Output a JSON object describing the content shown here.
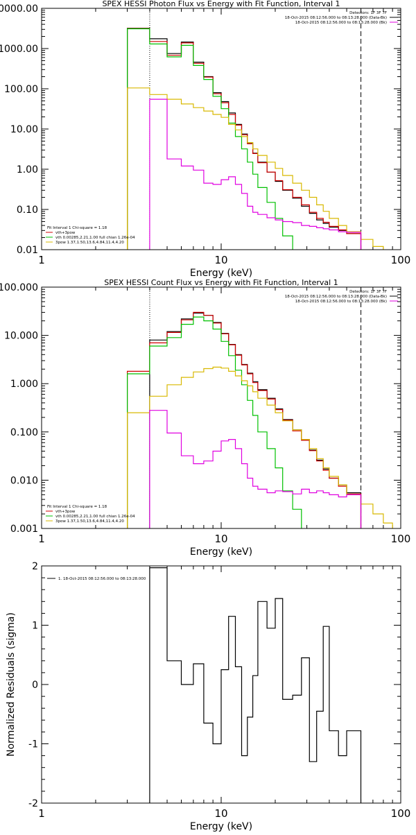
{
  "chart_data": [
    {
      "type": "line",
      "title": "SPEX HESSI Photon Flux vs Energy with Fit Function, Interval 1",
      "xlabel": "Energy (keV)",
      "ylabel": "",
      "x_scale": "log",
      "y_scale": "log",
      "xlim": [
        1,
        100
      ],
      "ylim": [
        0.01,
        10000
      ],
      "x_ticks": [
        "1",
        "10",
        "100"
      ],
      "y_ticks": [
        "0.01",
        "0.10",
        "1.00",
        "10.00",
        "100.00",
        "1000.00",
        "10000.00"
      ],
      "y_tick_values": [
        0.01,
        0.1,
        1,
        10,
        100,
        1000,
        10000
      ],
      "vlines": [
        {
          "x": 4,
          "style": "dotted"
        },
        {
          "x": 60,
          "style": "dashed"
        }
      ],
      "header_lines": [
        "Detectors: 1F 3F 7F",
        "18-Oct-2015 08:12:56.000 to 08:13:28.000 (Data-Bk)",
        "18-Oct-2015 08:12:56.000 to 08:13:28.000 (Bk)"
      ],
      "header_colors": [
        "#000000",
        "#000000",
        "#e000e0"
      ],
      "legend_lines": [
        "Fit Interval 1    Chi-square = 1.18",
        "vth+3pow",
        "vth 0.00285,2.21,1.00  full chian 1.26e-04",
        "3pow 1.37,1.50,13.6,4.84,11.4,4.20"
      ],
      "legend_colors": [
        "#000000",
        "#d00000",
        "#00c000",
        "#d8b800"
      ],
      "series": [
        {
          "name": "Data-Bk",
          "color": "#000000",
          "edges": [
            3,
            4,
            5,
            6,
            7,
            8,
            9,
            10,
            11,
            12,
            13,
            14,
            15,
            16,
            18,
            20,
            22,
            25,
            28,
            31,
            34,
            37,
            40,
            45,
            50,
            60
          ],
          "values": [
            3200,
            1750,
            750,
            1450,
            460,
            200,
            80,
            48,
            25,
            13,
            7.5,
            4.5,
            2.5,
            1.5,
            0.85,
            0.5,
            0.3,
            0.19,
            0.12,
            0.08,
            0.055,
            0.045,
            0.036,
            0.03,
            0.025
          ]
        },
        {
          "name": "vth+3pow",
          "color": "#d00000",
          "edges": [
            3,
            4,
            5,
            6,
            7,
            8,
            9,
            10,
            11,
            12,
            13,
            14,
            15,
            16,
            18,
            20,
            22,
            25,
            28,
            31,
            34,
            37,
            40,
            45,
            50,
            60
          ],
          "values": [
            3150,
            1500,
            680,
            1380,
            430,
            195,
            75,
            45,
            23,
            12.5,
            7.2,
            4.3,
            2.45,
            1.45,
            0.85,
            0.52,
            0.31,
            0.2,
            0.13,
            0.085,
            0.06,
            0.048,
            0.038,
            0.031,
            0.025
          ]
        },
        {
          "name": "vth",
          "color": "#00c000",
          "edges": [
            3,
            4,
            5,
            6,
            7,
            8,
            9,
            10,
            11,
            12,
            13,
            14,
            15,
            16,
            18,
            20,
            22,
            25
          ],
          "values": [
            3100,
            1300,
            620,
            1200,
            380,
            170,
            65,
            32,
            14,
            6.5,
            3.2,
            1.5,
            0.75,
            0.35,
            0.15,
            0.06,
            0.022
          ]
        },
        {
          "name": "3pow",
          "color": "#d8b800",
          "edges": [
            3,
            4,
            5,
            6,
            7,
            8,
            9,
            10,
            11,
            12,
            13,
            14,
            15,
            16,
            18,
            20,
            22,
            25,
            28,
            31,
            34,
            37,
            40,
            45,
            50,
            60,
            70,
            80
          ],
          "values": [
            105,
            72,
            55,
            42,
            34,
            28,
            23,
            19.5,
            13,
            9.5,
            6.5,
            4.6,
            3.2,
            2.2,
            1.5,
            1.05,
            0.7,
            0.45,
            0.3,
            0.2,
            0.13,
            0.09,
            0.06,
            0.04,
            0.028,
            0.018,
            0.012
          ]
        },
        {
          "name": "Bk",
          "color": "#e000e0",
          "edges": [
            4,
            5,
            6,
            7,
            8,
            9,
            10,
            11,
            12,
            13,
            14,
            15,
            16,
            18,
            20,
            22,
            25,
            28,
            31,
            34,
            37,
            40,
            45,
            50,
            60
          ],
          "values": [
            55,
            1.8,
            1.2,
            0.95,
            0.45,
            0.42,
            0.55,
            0.65,
            0.42,
            0.25,
            0.12,
            0.085,
            0.075,
            0.062,
            0.055,
            0.05,
            0.047,
            0.04,
            0.038,
            0.035,
            0.033,
            0.031,
            0.028,
            0.027
          ]
        }
      ]
    },
    {
      "type": "line",
      "title": "SPEX HESSI Count Flux vs Energy with Fit Function, Interval 1",
      "xlabel": "Energy (keV)",
      "ylabel": "",
      "x_scale": "log",
      "y_scale": "log",
      "xlim": [
        1,
        100
      ],
      "ylim": [
        0.001,
        100
      ],
      "x_ticks": [
        "1",
        "10",
        "100"
      ],
      "y_ticks": [
        "0.001",
        "0.010",
        "0.100",
        "1.000",
        "10.000",
        "100.000"
      ],
      "y_tick_values": [
        0.001,
        0.01,
        0.1,
        1,
        10,
        100
      ],
      "vlines": [
        {
          "x": 4,
          "style": "dotted"
        },
        {
          "x": 60,
          "style": "dashed"
        }
      ],
      "header_lines": [
        "Detectors: 1F 3F 7F",
        "18-Oct-2015 08:12:56.000 to 08:13:28.000 (Data-Bk)",
        "18-Oct-2015 08:12:56.000 to 08:13:28.000 (Bk)"
      ],
      "header_colors": [
        "#000000",
        "#000000",
        "#e000e0"
      ],
      "legend_lines": [
        "Fit Interval 1    Chi-square = 1.18",
        "vth+3pow",
        "vth 0.00285,2.21,1.00  full chian 1.26e-04",
        "3pow 1.37,1.50,13.6,4.84,11.4,4.20"
      ],
      "legend_colors": [
        "#000000",
        "#d00000",
        "#00c000",
        "#d8b800"
      ],
      "series": [
        {
          "name": "Data-Bk",
          "color": "#000000",
          "edges": [
            4,
            5,
            6,
            7,
            8,
            9,
            10,
            11,
            12,
            13,
            14,
            15,
            16,
            18,
            20,
            22,
            25,
            28,
            31,
            34,
            37,
            40,
            45,
            50,
            60
          ],
          "values": [
            8.0,
            12.0,
            22.0,
            29.0,
            26.0,
            18.5,
            11.0,
            6.5,
            4.0,
            2.5,
            1.65,
            1.1,
            0.75,
            0.5,
            0.3,
            0.18,
            0.11,
            0.07,
            0.042,
            0.026,
            0.017,
            0.011,
            0.008,
            0.0055
          ]
        },
        {
          "name": "vth+3pow",
          "color": "#d00000",
          "edges": [
            3,
            4,
            5,
            6,
            7,
            8,
            9,
            10,
            11,
            12,
            13,
            14,
            15,
            16,
            18,
            20,
            22,
            25,
            28,
            31,
            34,
            37,
            40,
            45,
            50,
            60
          ],
          "values": [
            1.8,
            7.0,
            11.5,
            21.0,
            30.0,
            26.0,
            18.0,
            10.8,
            6.4,
            3.9,
            2.45,
            1.6,
            1.05,
            0.72,
            0.48,
            0.29,
            0.175,
            0.105,
            0.067,
            0.041,
            0.025,
            0.016,
            0.011,
            0.0075,
            0.0052
          ]
        },
        {
          "name": "vth",
          "color": "#00c000",
          "edges": [
            3,
            4,
            5,
            6,
            7,
            8,
            9,
            10,
            11,
            12,
            13,
            14,
            15,
            16,
            18,
            20,
            22,
            25,
            28
          ],
          "values": [
            1.6,
            6.0,
            9.0,
            17.0,
            24.0,
            20.0,
            13.5,
            7.5,
            3.8,
            1.9,
            0.95,
            0.45,
            0.22,
            0.1,
            0.045,
            0.018,
            0.006,
            0.0025
          ]
        },
        {
          "name": "3pow",
          "color": "#d8b800",
          "edges": [
            3,
            4,
            5,
            6,
            7,
            8,
            9,
            10,
            11,
            12,
            13,
            14,
            15,
            16,
            18,
            20,
            22,
            25,
            28,
            31,
            34,
            37,
            40,
            45,
            50,
            60,
            70,
            80,
            90
          ],
          "values": [
            0.25,
            0.55,
            0.95,
            1.35,
            1.75,
            2.05,
            2.2,
            2.1,
            1.8,
            1.45,
            1.15,
            0.9,
            0.68,
            0.5,
            0.36,
            0.25,
            0.17,
            0.11,
            0.07,
            0.045,
            0.028,
            0.018,
            0.012,
            0.008,
            0.005,
            0.0032,
            0.002,
            0.0013
          ]
        },
        {
          "name": "Bk",
          "color": "#e000e0",
          "edges": [
            4,
            5,
            6,
            7,
            8,
            9,
            10,
            11,
            12,
            13,
            14,
            15,
            16,
            18,
            20,
            22,
            25,
            28,
            31,
            34,
            37,
            40,
            45,
            50,
            60
          ],
          "values": [
            0.28,
            0.095,
            0.032,
            0.022,
            0.025,
            0.04,
            0.065,
            0.07,
            0.045,
            0.022,
            0.011,
            0.0075,
            0.0065,
            0.0055,
            0.006,
            0.0058,
            0.0052,
            0.0065,
            0.0055,
            0.006,
            0.0055,
            0.005,
            0.0045,
            0.005
          ]
        }
      ]
    },
    {
      "type": "line",
      "title": "",
      "xlabel": "Energy (keV)",
      "ylabel": "Normalized Residuals (sigma)",
      "x_scale": "log",
      "y_scale": "linear",
      "xlim": [
        1,
        100
      ],
      "ylim": [
        -2,
        2
      ],
      "x_ticks": [
        "1",
        "10",
        "100"
      ],
      "y_ticks": [
        "-2",
        "-1",
        "0",
        "1",
        "2"
      ],
      "y_tick_values": [
        -2,
        -1,
        0,
        1,
        2
      ],
      "legend_lines": [
        "1. 18-Oct-2015 08:12:56.000 to 08:13:28.000"
      ],
      "legend_colors": [
        "#000000"
      ],
      "series": [
        {
          "name": "",
          "color": "#000000",
          "edges": [
            4,
            5,
            6,
            7,
            8,
            9,
            10,
            11,
            12,
            13,
            14,
            15,
            16,
            18,
            20,
            22,
            25,
            28,
            31,
            34,
            37,
            40,
            45,
            50,
            60
          ],
          "values": [
            1.97,
            0.4,
            0.0,
            0.35,
            -0.65,
            -1.0,
            0.25,
            1.15,
            0.3,
            -1.2,
            -0.55,
            0.15,
            1.4,
            0.95,
            1.45,
            -0.25,
            -0.18,
            0.45,
            -1.3,
            -0.45,
            0.98,
            -0.78,
            -1.2,
            -0.78
          ]
        }
      ]
    }
  ]
}
